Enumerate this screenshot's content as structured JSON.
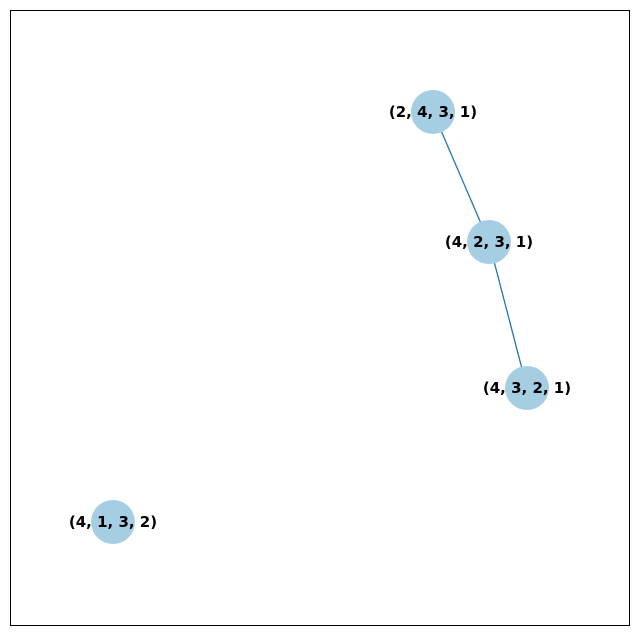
{
  "graph": {
    "colors": {
      "node_fill": "#a6cee3",
      "edge_stroke": "#1f78b4",
      "label_color": "#000000",
      "frame_color": "#000000"
    },
    "nodes": [
      {
        "id": "n2431",
        "label": "(2, 4, 3, 1)"
      },
      {
        "id": "n4231",
        "label": "(4, 2, 3, 1)"
      },
      {
        "id": "n4321",
        "label": "(4, 3, 2, 1)"
      },
      {
        "id": "n4132",
        "label": "(4, 1, 3, 2)"
      }
    ],
    "edges": [
      {
        "source": "n2431",
        "target": "n4231"
      },
      {
        "source": "n4231",
        "target": "n4321"
      }
    ]
  }
}
